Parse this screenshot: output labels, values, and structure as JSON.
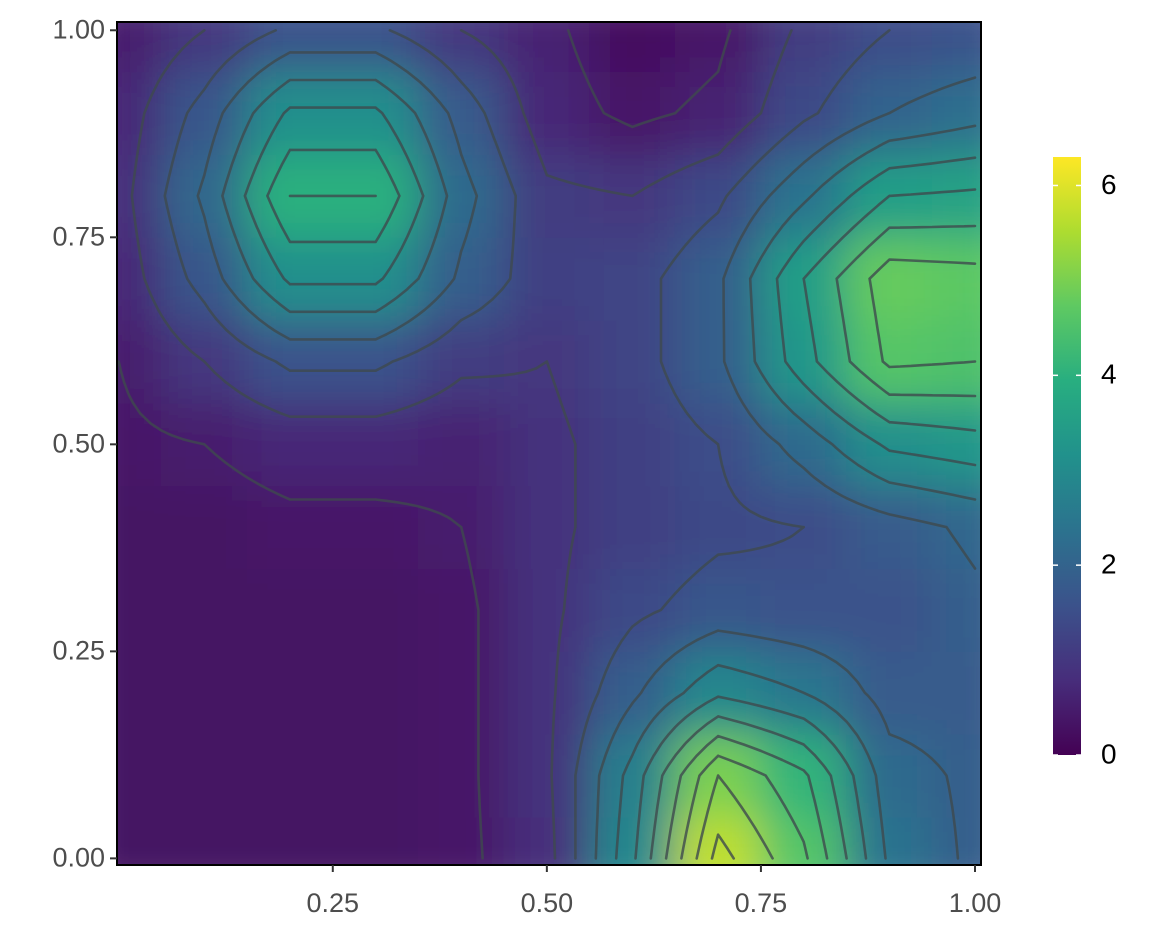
{
  "chart_data": {
    "type": "heatmap",
    "x": [
      0,
      0.1,
      0.2,
      0.3,
      0.4,
      0.5,
      0.6,
      0.7,
      0.8,
      0.9,
      1
    ],
    "y": [
      0,
      0.1,
      0.2,
      0.3,
      0.4,
      0.5,
      0.6,
      0.7,
      0.8,
      0.9,
      1
    ],
    "z": [
      [
        0.3,
        0.3,
        0.3,
        0.3,
        0.4,
        0.8,
        2.9,
        5.7,
        4.6,
        2.4,
        1.9
      ],
      [
        0.3,
        0.3,
        0.3,
        0.3,
        0.4,
        0.9,
        2.7,
        5.0,
        4.1,
        2.2,
        1.9
      ],
      [
        0.3,
        0.3,
        0.3,
        0.3,
        0.4,
        0.9,
        1.9,
        2.9,
        2.5,
        1.8,
        1.8
      ],
      [
        0.3,
        0.3,
        0.3,
        0.3,
        0.4,
        0.9,
        1.4,
        1.7,
        1.6,
        1.6,
        1.9
      ],
      [
        0.3,
        0.3,
        0.4,
        0.4,
        0.5,
        0.9,
        1.2,
        1.4,
        1.5,
        1.8,
        2.1
      ],
      [
        0.4,
        0.5,
        0.7,
        0.7,
        0.6,
        0.9,
        1.2,
        1.5,
        2.2,
        3.1,
        3.3
      ],
      [
        0.5,
        1.0,
        1.6,
        1.6,
        1.1,
        1.0,
        1.3,
        1.9,
        3.3,
        4.6,
        4.5
      ],
      [
        0.7,
        1.7,
        3.1,
        3.1,
        1.9,
        1.2,
        1.3,
        1.9,
        3.5,
        4.8,
        4.7
      ],
      [
        0.8,
        2.1,
        4.0,
        4.0,
        2.2,
        1.1,
        1.0,
        1.4,
        2.4,
        3.5,
        3.6
      ],
      [
        0.7,
        1.7,
        3.1,
        3.1,
        1.8,
        0.7,
        0.4,
        0.6,
        1.4,
        2.0,
        2.3
      ],
      [
        0.5,
        1.0,
        1.6,
        1.6,
        1.0,
        0.6,
        0.2,
        0.4,
        1.1,
        1.5,
        1.6
      ]
    ],
    "xlim": [
      -0.002,
      1.007
    ],
    "ylim": [
      -0.008,
      1.01
    ],
    "xticks": [
      0.25,
      {
        "value": 0.5,
        "label": "0.50"
      },
      0.75,
      {
        "value": 1,
        "label": "1.00"
      }
    ],
    "yticks": [
      {
        "value": 0,
        "label": "0.00"
      },
      0.25,
      {
        "value": 0.5,
        "label": "0.50"
      },
      0.75,
      {
        "value": 1,
        "label": "1.00"
      }
    ],
    "zlim": [
      0,
      6.3
    ],
    "zticks": [
      0,
      2,
      4,
      6
    ],
    "colorscale": [
      "#440154",
      "#472d7b",
      "#3b528b",
      "#2c728e",
      "#21918c",
      "#28ae80",
      "#5ec962",
      "#addc30",
      "#fde725"
    ],
    "contour_binwidth": 0.5,
    "contour_color": "#3f4a4e"
  }
}
